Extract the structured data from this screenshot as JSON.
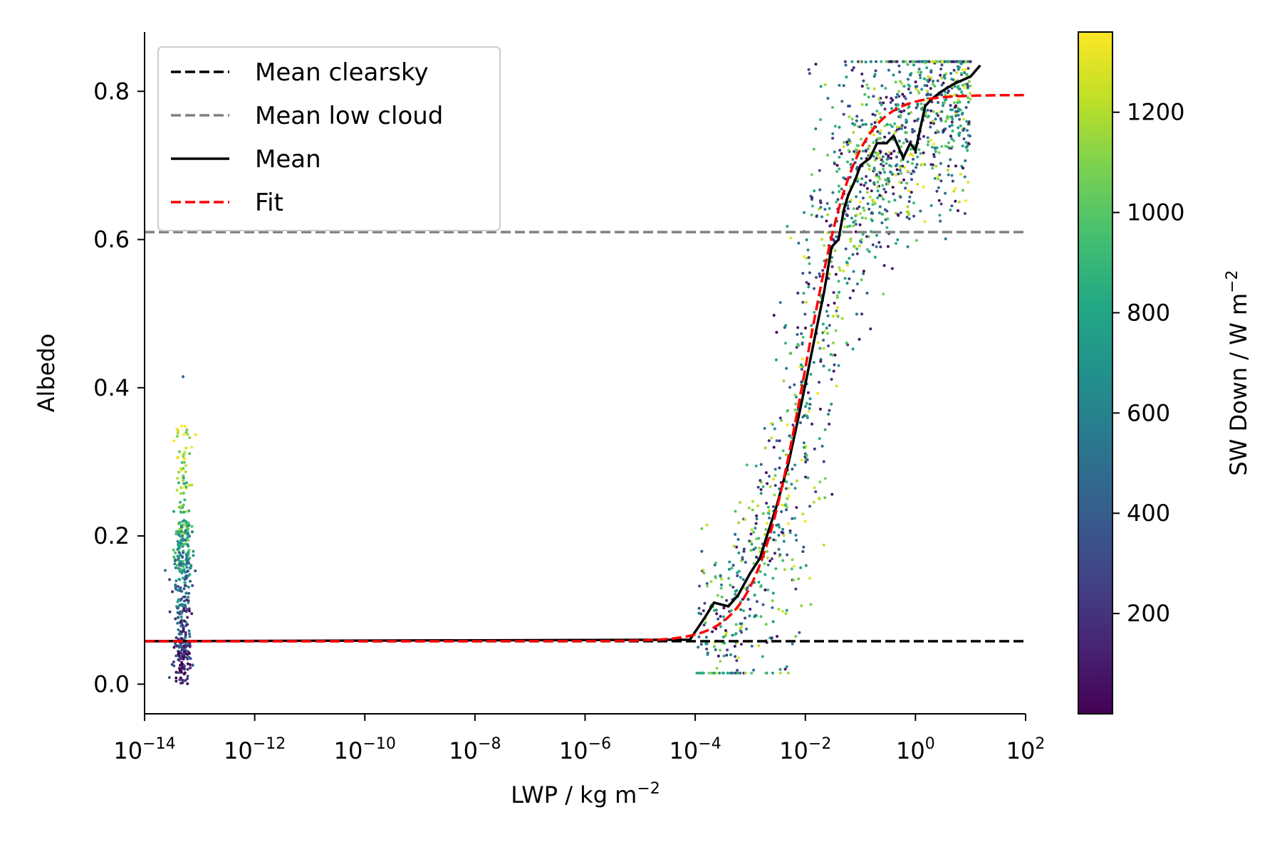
{
  "chart_data": {
    "type": "scatter",
    "xscale": "log",
    "xlabel_text": "LWP / kg m",
    "xlabel_sup": "−2",
    "ylabel": "Albedo",
    "colorbar_label_text": "SW Down / W m",
    "colorbar_label_sup": "−2",
    "xlim": [
      1e-14,
      100
    ],
    "ylim": [
      -0.04,
      0.88
    ],
    "x_ticks": [
      {
        "base": "10",
        "exp": "−14",
        "value": 1e-14
      },
      {
        "base": "10",
        "exp": "−12",
        "value": 1e-12
      },
      {
        "base": "10",
        "exp": "−10",
        "value": 1e-10
      },
      {
        "base": "10",
        "exp": "−8",
        "value": 1e-08
      },
      {
        "base": "10",
        "exp": "−6",
        "value": 1e-06
      },
      {
        "base": "10",
        "exp": "−4",
        "value": 0.0001
      },
      {
        "base": "10",
        "exp": "−2",
        "value": 0.01
      },
      {
        "base": "10",
        "exp": "0",
        "value": 1
      },
      {
        "base": "10",
        "exp": "2",
        "value": 100
      }
    ],
    "y_ticks": [
      {
        "label": "0.0",
        "value": 0.0
      },
      {
        "label": "0.2",
        "value": 0.2
      },
      {
        "label": "0.4",
        "value": 0.4
      },
      {
        "label": "0.6",
        "value": 0.6
      },
      {
        "label": "0.8",
        "value": 0.8
      }
    ],
    "colorbar": {
      "range": [
        0,
        1360
      ],
      "colormap": "viridis",
      "ticks": [
        {
          "label": "200",
          "value": 200
        },
        {
          "label": "400",
          "value": 400
        },
        {
          "label": "600",
          "value": 600
        },
        {
          "label": "800",
          "value": 800
        },
        {
          "label": "1000",
          "value": 1000
        },
        {
          "label": "1200",
          "value": 1200
        }
      ]
    },
    "legend": {
      "position": "top-left",
      "entries": [
        {
          "label": "Mean clearsky",
          "color": "#000000",
          "style": "dashed"
        },
        {
          "label": "Mean low cloud",
          "color": "#808080",
          "style": "dashed"
        },
        {
          "label": "Mean",
          "color": "#000000",
          "style": "solid"
        },
        {
          "label": "Fit",
          "color": "#ff0000",
          "style": "dashed"
        }
      ]
    },
    "reference_lines": {
      "mean_clearsky": 0.058,
      "mean_low_cloud": 0.61
    },
    "mean_curve": {
      "x": [
        1e-14,
        8e-05,
        0.00015,
        0.00022,
        0.0004,
        0.0006,
        0.001,
        0.0015,
        0.002,
        0.003,
        0.005,
        0.008,
        0.011,
        0.016,
        0.022,
        0.03,
        0.04,
        0.05,
        0.06,
        0.08,
        0.1,
        0.15,
        0.2,
        0.3,
        0.4,
        0.6,
        0.8,
        1.0,
        1.5,
        2.0,
        3.0,
        5.0,
        10.0,
        15.0
      ],
      "y": [
        0.058,
        0.06,
        0.09,
        0.11,
        0.105,
        0.12,
        0.15,
        0.17,
        0.2,
        0.24,
        0.3,
        0.37,
        0.42,
        0.48,
        0.53,
        0.59,
        0.6,
        0.64,
        0.66,
        0.68,
        0.7,
        0.71,
        0.73,
        0.73,
        0.74,
        0.71,
        0.73,
        0.72,
        0.78,
        0.79,
        0.8,
        0.81,
        0.82,
        0.835
      ]
    },
    "fit_curve": {
      "model": "logistic in log10(LWP)",
      "min": 0.058,
      "max": 0.795,
      "center_lwp": 0.01,
      "x_range": [
        1e-14,
        100
      ]
    },
    "scatter_clusters": [
      {
        "x_center": 5e-14,
        "x_spread_decades": 0.3,
        "y_range": [
          0.0,
          0.42
        ],
        "color_range": [
          0,
          1360
        ],
        "count": 450
      },
      {
        "x_range": [
          0.0001,
          10
        ],
        "follows": "fit_curve",
        "y_range": [
          0.02,
          0.84
        ],
        "color_range": [
          0,
          1360
        ],
        "count": 1500
      }
    ]
  }
}
